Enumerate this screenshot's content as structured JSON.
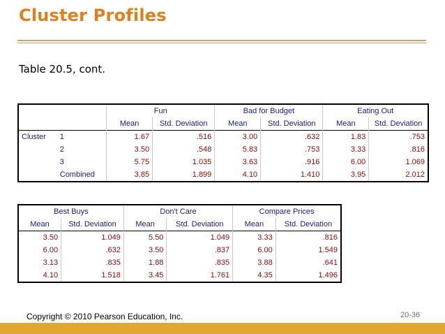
{
  "title": "Cluster Profiles",
  "subtitle": "Table 20.5, cont.",
  "table1": {
    "groups": [
      "Fun",
      "Bad for Budget",
      "Eating Out"
    ],
    "subheaders": [
      "Mean",
      "Std. Deviation",
      "Mean",
      "Std. Deviation",
      "Mean",
      "Std. Deviation"
    ],
    "cluster_label": "Cluster",
    "rows": [
      {
        "label": "1",
        "values": [
          "1.67",
          ".516",
          "3.00",
          ".632",
          "1.83",
          ".753"
        ]
      },
      {
        "label": "2",
        "values": [
          "3.50",
          ".548",
          "5.83",
          ".753",
          "3.33",
          ".816"
        ]
      },
      {
        "label": "3",
        "values": [
          "5.75",
          "1.035",
          "3.63",
          ".916",
          "6.00",
          "1.069"
        ]
      },
      {
        "label": "Combined",
        "values": [
          "3.85",
          "1.899",
          "4.10",
          "1.410",
          "3.95",
          "2.012"
        ]
      }
    ]
  },
  "table2": {
    "groups": [
      "Best Buys",
      "Don't Care",
      "Compare Prices"
    ],
    "subheaders": [
      "Mean",
      "Std. Deviation",
      "Mean",
      "Std. Deviation",
      "Mean",
      "Std. Deviation"
    ],
    "rows": [
      {
        "values": [
          "3.50",
          "1.049",
          "5.50",
          "1.049",
          "3.33",
          ".816"
        ]
      },
      {
        "values": [
          "6.00",
          ".632",
          "3.50",
          ".837",
          "6.00",
          "1.549"
        ]
      },
      {
        "values": [
          "3.13",
          ".835",
          "1.88",
          ".835",
          "3.88",
          ".641"
        ]
      },
      {
        "values": [
          "4.10",
          "1.518",
          "3.45",
          "1.761",
          "4.35",
          "1.496"
        ]
      }
    ]
  },
  "footer": "Copyright © 2010 Pearson Education, Inc.",
  "page_number": "20-36",
  "colors": {
    "title": "#e0801c",
    "rule": "#c9a56a",
    "bottom_bar": "#e0a82e",
    "header_text": "#1a1a7a",
    "value_text": "#8b0a0a"
  }
}
